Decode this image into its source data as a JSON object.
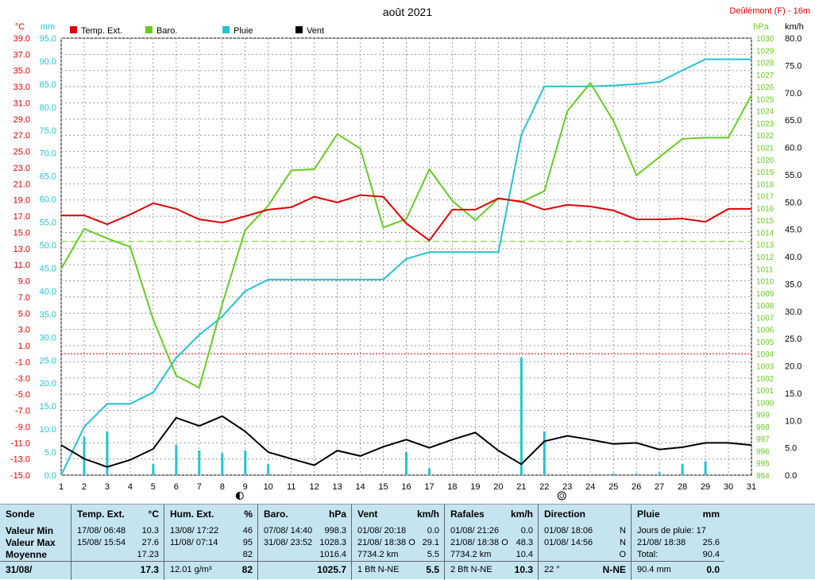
{
  "chart_data": {
    "type": "line",
    "title": "août 2021",
    "station": "Deûlémont (F) - 16m",
    "x": [
      1,
      2,
      3,
      4,
      5,
      6,
      7,
      8,
      9,
      10,
      11,
      12,
      13,
      14,
      15,
      16,
      17,
      18,
      19,
      20,
      21,
      22,
      23,
      24,
      25,
      26,
      27,
      28,
      29,
      30,
      31
    ],
    "axes": {
      "left_temp": {
        "unit": "°C",
        "range": [
          -15,
          39
        ],
        "ticks": [
          39,
          37,
          35,
          33,
          31,
          29,
          27,
          25,
          23,
          21,
          19,
          17,
          15,
          13,
          11,
          9,
          7,
          5,
          3,
          1,
          -1,
          -3,
          -5,
          -7,
          -9,
          -11,
          -13,
          -15
        ]
      },
      "left_hum": {
        "unit": "mm",
        "range": [
          0,
          95
        ],
        "ticks": [
          95,
          90,
          85,
          80,
          75,
          70,
          65,
          60,
          55,
          50,
          45,
          40,
          35,
          30,
          25,
          20,
          15,
          10,
          5,
          0
        ]
      },
      "right_baro": {
        "unit": "hPa",
        "range": [
          994,
          1030
        ],
        "ticks": [
          1030,
          1029,
          1028,
          1027,
          1026,
          1025,
          1024,
          1023,
          1022,
          1021,
          1020,
          1019,
          1018,
          1017,
          1016,
          1015,
          1014,
          1013,
          1012,
          1011,
          1010,
          1009,
          1008,
          1007,
          1006,
          1005,
          1004,
          1003,
          1002,
          1001,
          1000,
          999,
          998,
          997,
          996,
          995,
          994
        ]
      },
      "right_wind": {
        "unit": "km/h",
        "range": [
          0,
          80
        ],
        "ticks": [
          80,
          75,
          70,
          65,
          60,
          55,
          50,
          45,
          40,
          35,
          30,
          25,
          20,
          15,
          10,
          5,
          0
        ]
      }
    },
    "grid": true,
    "legend_position": "top",
    "reference_lines": [
      {
        "axis": "left_temp",
        "value": 0,
        "color": "#e00000",
        "style": "dotted"
      },
      {
        "axis": "right_baro",
        "value": 1013.25,
        "color": "#66cc22",
        "style": "dashed"
      }
    ],
    "series": [
      {
        "name": "Temp. Ext.",
        "color": "#e00000",
        "axis": "left_temp",
        "values": [
          17.1,
          17.1,
          16.0,
          17.2,
          18.6,
          17.9,
          16.6,
          16.2,
          17.0,
          17.8,
          18.1,
          19.4,
          18.7,
          19.6,
          19.4,
          16.1,
          14.0,
          17.8,
          17.8,
          19.2,
          18.8,
          17.8,
          18.4,
          18.2,
          17.7,
          16.6,
          16.6,
          16.7,
          16.3,
          17.9,
          17.9
        ],
        "markers": [
          {
            "day": 9,
            "icon": "new-moon"
          },
          {
            "day": 23,
            "icon": "full-moon"
          }
        ]
      },
      {
        "name": "Baro.",
        "color": "#66cc22",
        "axis": "right_baro",
        "values": [
          1011,
          1014.3,
          1013.5,
          1012.8,
          1006.8,
          1002.2,
          1001.2,
          1008.1,
          1014.2,
          1016.2,
          1019.1,
          1019.2,
          1022.1,
          1020.9,
          1014.4,
          1015.1,
          1019.2,
          1016.6,
          1015.0,
          1016.8,
          1016.5,
          1017.4,
          1024.0,
          1026.3,
          1023.2,
          1018.7,
          1020.2,
          1021.7,
          1021.8,
          1021.8,
          1025.3
        ]
      },
      {
        "name": "Pluie",
        "color": "#22c4d0",
        "axis": "left_hum",
        "cumulative": true,
        "values": [
          0,
          10.5,
          15.5,
          15.5,
          18.0,
          25.5,
          30.5,
          34.5,
          40.0,
          42.5,
          42.5,
          42.5,
          42.5,
          42.5,
          42.5,
          47.0,
          48.5,
          48.5,
          48.5,
          48.5,
          74.0,
          84.5,
          84.5,
          84.5,
          84.7,
          85.0,
          85.5,
          88.0,
          90.4,
          90.4,
          90.4
        ],
        "daily_bars_kmh_axis": [
          0,
          7.0,
          8.0,
          0,
          2.0,
          5.5,
          4.5,
          4.0,
          4.5,
          2.0,
          0,
          0,
          0,
          0,
          0,
          4.2,
          1.2,
          0,
          0,
          0,
          21.5,
          8.0,
          0,
          0,
          0.3,
          0.3,
          0.5,
          2.0,
          2.5,
          0,
          0
        ]
      },
      {
        "name": "Vent",
        "color": "#000000",
        "axis": "right_wind",
        "values": [
          5.5,
          3.0,
          1.5,
          2.8,
          4.8,
          10.5,
          9.0,
          10.8,
          8.0,
          4.2,
          3.0,
          1.8,
          4.5,
          3.5,
          5.2,
          6.5,
          5.0,
          6.5,
          7.8,
          4.5,
          2.0,
          6.2,
          7.2,
          6.5,
          5.7,
          5.9,
          4.7,
          5.1,
          5.9,
          5.9,
          5.5
        ]
      }
    ]
  },
  "stats": {
    "sonde": {
      "header": "Sonde",
      "rows": [
        "Valeur Min",
        "Valeur Max",
        "Moyenne",
        "31/08/"
      ]
    },
    "temp": {
      "header": "Temp. Ext.",
      "unit": "°C",
      "rows": [
        [
          "17/08/  06:48",
          "10.3"
        ],
        [
          "15/08/  15:54",
          "27.6"
        ],
        [
          "",
          "17.23"
        ],
        [
          "",
          "17.3"
        ]
      ]
    },
    "hum": {
      "header": "Hum. Ext.",
      "unit": "%",
      "rows": [
        [
          "13/08/  17:22",
          "46"
        ],
        [
          "11/08/  07:14",
          "95"
        ],
        [
          "",
          "82"
        ],
        [
          "12.01 g/m³",
          "82"
        ]
      ]
    },
    "baro": {
      "header": "Baro.",
      "unit": "hPa",
      "rows": [
        [
          "07/08/  14:40",
          "998.3"
        ],
        [
          "31/08/  23:52",
          "1028.3"
        ],
        [
          "",
          "1016.4"
        ],
        [
          "",
          "1025.7"
        ]
      ]
    },
    "vent": {
      "header": "Vent",
      "unit": "km/h",
      "rows": [
        [
          "01/08/  20:18",
          "0.0"
        ],
        [
          "21/08/  18:38  O",
          "29.1"
        ],
        [
          "7734.2 km",
          "5.5"
        ],
        [
          "1 Bft N-NE",
          "5.5"
        ]
      ]
    },
    "rafales": {
      "header": "Rafales",
      "unit": "km/h",
      "rows": [
        [
          "01/08/  21:26",
          "0.0"
        ],
        [
          "21/08/  18:38  O",
          "48.3"
        ],
        [
          "7734.2 km",
          "10.4"
        ],
        [
          "2 Bft N-NE",
          "10.3"
        ]
      ]
    },
    "direction": {
      "header": "Direction",
      "unit": "",
      "rows": [
        [
          "01/08/  18:06",
          "N"
        ],
        [
          "01/08/  14:56",
          "N"
        ],
        [
          "",
          "O"
        ],
        [
          "22 °",
          "N-NE"
        ]
      ]
    },
    "pluie": {
      "header": "Pluie",
      "unit": "mm",
      "rows": [
        [
          "Jours de pluie: 17",
          ""
        ],
        [
          "21/08/  18:38",
          "25.6"
        ],
        [
          "Total:",
          "90.4"
        ],
        [
          "90.4 mm",
          "0.0"
        ]
      ]
    }
  }
}
